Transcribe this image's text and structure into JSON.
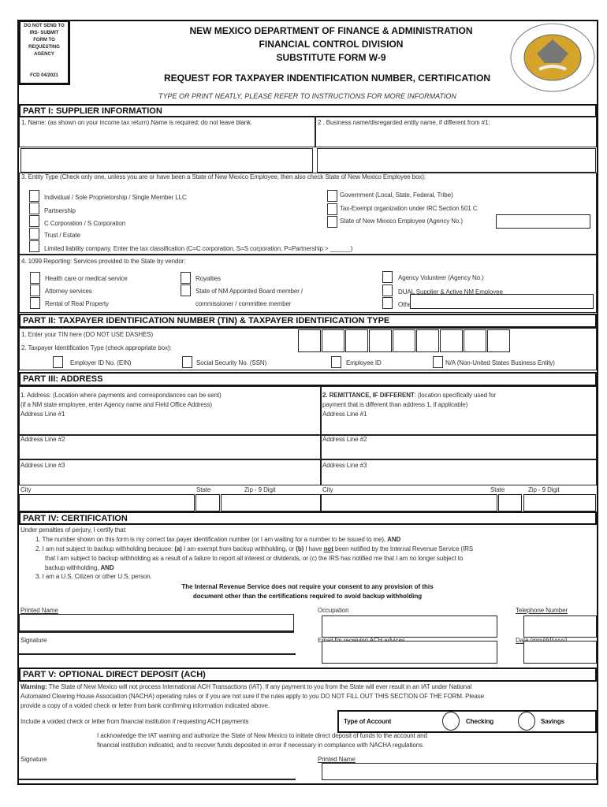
{
  "header": {
    "notice": "DO NOT SEND TO IRS- SUBMIT FORM TO REQUESTING AGENCY",
    "form_code": "FCD 04/2021",
    "line1": "NEW MEXICO DEPARTMENT OF FINANCE & ADMINISTRATION",
    "line2": "FINANCIAL CONTROL DIVISION",
    "line3": "SUBSTITUTE FORM W-9",
    "line4": "REQUEST FOR TAXPAYER INDENTIFICATION NUMBER, CERTIFICATION",
    "instruction": "TYPE OR PRINT NEATLY, PLEASE REFER TO INSTRUCTIONS FOR MORE INFORMATION",
    "seal_text": "GREAT SEAL OF THE STATE OF NEW MEXICO 1912"
  },
  "part1": {
    "title": "PART I: SUPPLIER INFORMATION",
    "name_label": "1. Name: (as shown on your income tax return).Name is required; do not leave blank.",
    "business_label": "2 . Business name/disregarded entity name, if different from #1:",
    "entity_label": "3. Entity Type (Check only one, unless you are or have been a State of New Mexico Employee, then also check State of New Mexico Employee box):",
    "entity_left": [
      "Individual / Sole Proprietorship / Single Member LLC",
      "Partnership",
      "C Corporation / S Corporation",
      "Trust / Estate",
      "Limited liability company. Enter the tax classification (C=C corporation, S=S corporation, P=Partnership > ______)"
    ],
    "entity_right": [
      "Government (Local, State, Federal, Tribe)",
      "Tax-Exempt organization under IRC Section  501 C",
      "State of New Mexico Employee (Agency No.)"
    ],
    "reporting_label": "4. 1099 Reporting: Services provided to the State by vendor:",
    "rep_col1": [
      "Health care or medical service",
      "Attorney services",
      "Rental of Real Property"
    ],
    "rep_col2": [
      "Royalties",
      "State of NM Appointed Board member /",
      "commissioner / committee member"
    ],
    "rep_col3": [
      "Agency Volunteer (Agency No.)",
      "DUAL  Supplier  &  Active  NM  Employee",
      "Other"
    ]
  },
  "part2": {
    "title": "PART II: TAXPAYER IDENTIFICATION NUMBER (TIN) & TAXPAYER IDENTIFICATION TYPE",
    "tin_label": "1. Enter your TIN here (DO NOT USE DASHES)",
    "type_label": "2. Taxpayer Identification Type (check appropriate box):",
    "types": [
      "Employer ID No. (EIN)",
      "Social Security No. (SSN)",
      "Employee ID",
      "N/A (Non-United States Business Entity)"
    ]
  },
  "part3": {
    "title": "PART III: ADDRESS",
    "left_l1": "1. Address: (Location where payments and correspondances can be sent)",
    "left_l2": "(if a NM state employee, enter Agency name and Field Office Address)",
    "right_bold": "2. REMITTANCE, IF DIFFERENT",
    "right_l1": ":  (location specifically used for",
    "right_l2": "payment that is different than address 1, if applicable)",
    "addr1": "Address Line #1",
    "addr2": "Address Line #2",
    "addr3": "Address Line #3",
    "city": "City",
    "state": "State",
    "zip": "Zip - 9 Digit"
  },
  "part4": {
    "title": "PART IV: CERTIFICATION",
    "intro": "Under penalties of perjury, I certify that:",
    "item1": "1. The number shown on this form is my correct tax payer identification number (or I am waiting for a number to be issued to me), ",
    "and": "AND",
    "item2a": "2. I am not subject to backup withholding because: ",
    "a": "(a)",
    "item2b": " I am exempt from backup withholding, or ",
    "b": "(b)",
    "item2c": " I have ",
    "not": "not",
    "item2d": " been notified by the Internal Revenue Service (IRS",
    "item2e": "that I am subject to backup withholding as a result of a failure to report all interest or dividends, or (c) the IRS has notified me that I am no longer subject to",
    "item2f": "backup withholding, ",
    "item3": "3. I am a U.S. Citizen or other U.S. person.",
    "bold1": "The Internal Revenue Service does not require your consent to any provision of this",
    "bold2": "document other than the certifications required to avoid backup withholding",
    "printed_name": "Printed Name",
    "occupation": "Occupation",
    "telephone": "Telephone Number",
    "signature": "Signature",
    "email": "Email for receiving ACH advices",
    "date": "Date (mm/dd/yyyy)"
  },
  "part5": {
    "title": "PART V: OPTIONAL DIRECT DEPOSIT (ACH)",
    "warning_label": "Warning:",
    "warning1": " The State of New Mexico will not process International ACH Transactions (IAT). If any payment to you from the State will ever result in an IAT under National",
    "warning2": "Automated Clearing House Association (NACHA) operating rules or if you are not sure if the rules apply to you DO NOT FILL OUT THIS SECTION OF THE FORM. Please",
    "warning3": "provide a copy of a voided check or letter from bank confirming information indicated above.",
    "include": "Include a voided check or letter from financial institution if requesting ACH payments",
    "account_type": "Type of Account",
    "checking": "Checking",
    "savings": "Savings",
    "ack1": "I acknowledge the IAT warning and authorize the State of New Mexico to initiate direct deposit of funds to the account and",
    "ack2": "financial institution indicated, and to recover funds deposited in error if necessary in compliance with NACHA regulations.",
    "signature": "Signature",
    "printed_name": "Printed Name"
  },
  "colors": {
    "border": "#111111",
    "seal_gold": "#d4a52a"
  }
}
